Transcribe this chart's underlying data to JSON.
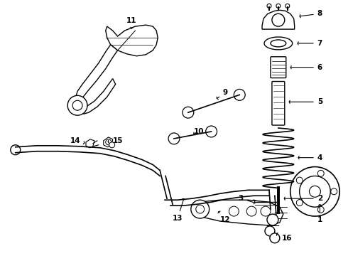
{
  "background_color": "#ffffff",
  "line_color": "#000000",
  "label_color": "#000000",
  "figsize": [
    4.9,
    3.6
  ],
  "dpi": 100
}
